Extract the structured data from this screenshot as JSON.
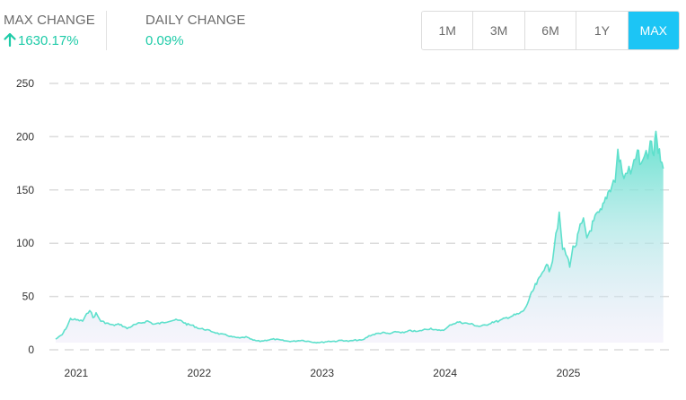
{
  "stats": {
    "max_change": {
      "label": "MAX CHANGE",
      "value": "1630.17%",
      "color": "#1ecba8",
      "icon": "arrow-up-icon"
    },
    "daily_change": {
      "label": "DAILY CHANGE",
      "value": "0.09%",
      "color": "#1ecba8"
    }
  },
  "ranges": {
    "options": [
      "1M",
      "3M",
      "6M",
      "1Y",
      "MAX"
    ],
    "selected": "MAX",
    "accent": "#1cc5f5"
  },
  "chart_data": {
    "type": "area",
    "title": "",
    "xlabel": "",
    "ylabel": "",
    "ylim": [
      0,
      250
    ],
    "yticks": [
      0,
      50,
      100,
      150,
      200,
      250
    ],
    "xticks": [
      "2021",
      "2022",
      "2023",
      "2024",
      "2025"
    ],
    "xlim": [
      "2020-11-01",
      "2025-11-25"
    ],
    "grid": true,
    "line_color": "#5ee0cc",
    "fill_top_color": "#5ee0cc",
    "fill_bottom_color": "#e6e1f6",
    "series": [
      {
        "points": [
          [
            "2020-11-01",
            10
          ],
          [
            "2020-11-20",
            14
          ],
          [
            "2020-12-05",
            22
          ],
          [
            "2020-12-15",
            29
          ],
          [
            "2021-01-01",
            28
          ],
          [
            "2021-01-20",
            27
          ],
          [
            "2021-02-01",
            33
          ],
          [
            "2021-02-10",
            38
          ],
          [
            "2021-02-20",
            30
          ],
          [
            "2021-03-01",
            34
          ],
          [
            "2021-03-15",
            27
          ],
          [
            "2021-04-01",
            25
          ],
          [
            "2021-04-20",
            23
          ],
          [
            "2021-05-10",
            24
          ],
          [
            "2021-06-01",
            20
          ],
          [
            "2021-06-20",
            23
          ],
          [
            "2021-07-10",
            25
          ],
          [
            "2021-08-01",
            27
          ],
          [
            "2021-08-20",
            24
          ],
          [
            "2021-09-10",
            25
          ],
          [
            "2021-10-01",
            27
          ],
          [
            "2021-10-20",
            28
          ],
          [
            "2021-11-10",
            27
          ],
          [
            "2021-11-25",
            24
          ],
          [
            "2021-12-10",
            23
          ],
          [
            "2022-01-01",
            20
          ],
          [
            "2022-01-20",
            19
          ],
          [
            "2022-02-10",
            17
          ],
          [
            "2022-03-01",
            15
          ],
          [
            "2022-03-20",
            14
          ],
          [
            "2022-04-10",
            12
          ],
          [
            "2022-05-01",
            11
          ],
          [
            "2022-05-20",
            12
          ],
          [
            "2022-06-10",
            9
          ],
          [
            "2022-07-01",
            8
          ],
          [
            "2022-07-20",
            9
          ],
          [
            "2022-08-10",
            10
          ],
          [
            "2022-09-01",
            9
          ],
          [
            "2022-09-20",
            8
          ],
          [
            "2022-10-10",
            8
          ],
          [
            "2022-11-01",
            9
          ],
          [
            "2022-11-20",
            8
          ],
          [
            "2022-12-10",
            7
          ],
          [
            "2023-01-01",
            7
          ],
          [
            "2023-01-20",
            8
          ],
          [
            "2023-02-10",
            8
          ],
          [
            "2023-03-01",
            9
          ],
          [
            "2023-03-20",
            8
          ],
          [
            "2023-04-10",
            9
          ],
          [
            "2023-05-01",
            9
          ],
          [
            "2023-05-20",
            13
          ],
          [
            "2023-06-10",
            15
          ],
          [
            "2023-07-01",
            16
          ],
          [
            "2023-07-20",
            15
          ],
          [
            "2023-08-10",
            17
          ],
          [
            "2023-09-01",
            16
          ],
          [
            "2023-09-20",
            18
          ],
          [
            "2023-10-10",
            17
          ],
          [
            "2023-11-01",
            19
          ],
          [
            "2023-11-20",
            20
          ],
          [
            "2023-12-10",
            18
          ],
          [
            "2024-01-01",
            19
          ],
          [
            "2024-01-20",
            24
          ],
          [
            "2024-02-10",
            26
          ],
          [
            "2024-03-01",
            25
          ],
          [
            "2024-03-20",
            24
          ],
          [
            "2024-04-10",
            22
          ],
          [
            "2024-05-01",
            23
          ],
          [
            "2024-05-20",
            26
          ],
          [
            "2024-06-10",
            27
          ],
          [
            "2024-07-01",
            30
          ],
          [
            "2024-07-20",
            32
          ],
          [
            "2024-08-10",
            34
          ],
          [
            "2024-08-25",
            38
          ],
          [
            "2024-09-10",
            50
          ],
          [
            "2024-09-25",
            60
          ],
          [
            "2024-10-10",
            68
          ],
          [
            "2024-10-25",
            80
          ],
          [
            "2024-11-05",
            75
          ],
          [
            "2024-11-15",
            85
          ],
          [
            "2024-11-25",
            110
          ],
          [
            "2024-12-05",
            125
          ],
          [
            "2024-12-15",
            95
          ],
          [
            "2024-12-25",
            90
          ],
          [
            "2025-01-05",
            80
          ],
          [
            "2025-01-15",
            95
          ],
          [
            "2025-01-25",
            100
          ],
          [
            "2025-02-05",
            115
          ],
          [
            "2025-02-15",
            120
          ],
          [
            "2025-02-25",
            105
          ],
          [
            "2025-03-10",
            115
          ],
          [
            "2025-03-25",
            125
          ],
          [
            "2025-04-10",
            130
          ],
          [
            "2025-04-25",
            145
          ],
          [
            "2025-05-10",
            155
          ],
          [
            "2025-05-20",
            160
          ],
          [
            "2025-05-28",
            185
          ],
          [
            "2025-06-05",
            175
          ],
          [
            "2025-06-15",
            160
          ],
          [
            "2025-06-25",
            170
          ],
          [
            "2025-07-05",
            165
          ],
          [
            "2025-07-15",
            175
          ],
          [
            "2025-07-25",
            190
          ],
          [
            "2025-08-05",
            170
          ],
          [
            "2025-08-15",
            185
          ],
          [
            "2025-08-25",
            178
          ],
          [
            "2025-09-05",
            195
          ],
          [
            "2025-09-12",
            180
          ],
          [
            "2025-09-18",
            205
          ],
          [
            "2025-09-25",
            185
          ],
          [
            "2025-10-02",
            180
          ],
          [
            "2025-10-10",
            170
          ]
        ]
      }
    ]
  }
}
